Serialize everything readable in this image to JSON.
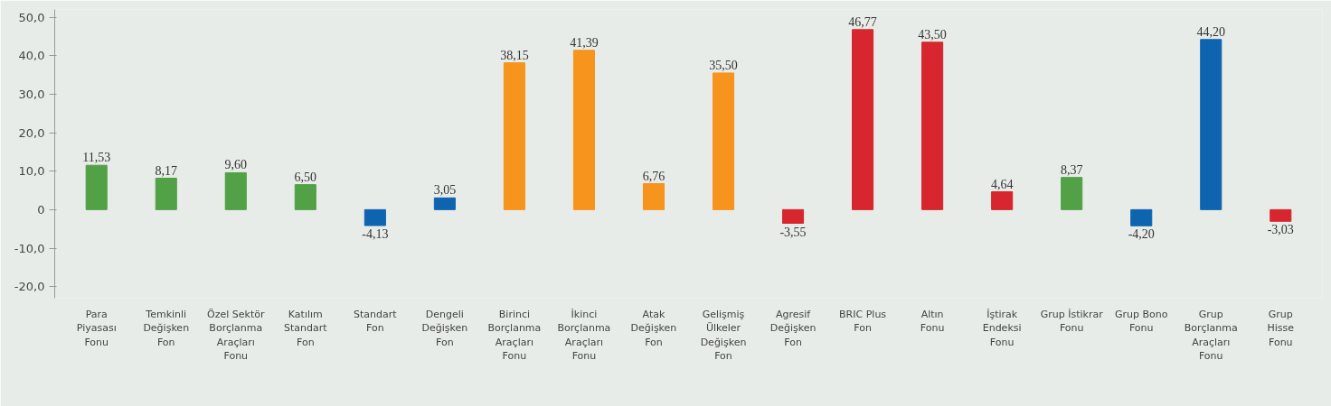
{
  "chart_data": {
    "type": "bar",
    "categories": [
      "Para\nPiyasası\nFonu",
      "Temkinli\nDeğişken\nFon",
      "Özel Sektör\nBorçlanma\nAraçları\nFonu",
      "Katılım\nStandart\nFon",
      "Standart\nFon",
      "Dengeli\nDeğişken\nFon",
      "Birinci\nBorçlanma\nAraçları\nFonu",
      "İkinci\nBorçlanma\nAraçları\nFonu",
      "Atak\nDeğişken\nFon",
      "Gelişmiş\nÜlkeler\nDeğişken\nFon",
      "Agresif\nDeğişken\nFon",
      "BRIC Plus\nFon",
      "Altın\nFonu",
      "İştirak\nEndeksi\nFonu",
      "Grup İstikrar\nFonu",
      "Grup Bono\nFonu",
      "Grup\nBorçlanma\nAraçları\nFonu",
      "Grup\nHisse\nFonu"
    ],
    "values": [
      11.53,
      8.17,
      9.6,
      6.5,
      -4.13,
      3.05,
      38.15,
      41.39,
      6.76,
      35.5,
      -3.55,
      46.77,
      43.5,
      4.64,
      8.37,
      -4.2,
      44.2,
      -3.03
    ],
    "value_labels": [
      "11,53",
      "8,17",
      "9,60",
      "6,50",
      "-4,13",
      "3,05",
      "38,15",
      "41,39",
      "6,76",
      "35,50",
      "-3,55",
      "46,77",
      "43,50",
      "4,64",
      "8,37",
      "-4,20",
      "44,20",
      "-3,03"
    ],
    "colors": [
      "#52a147",
      "#52a147",
      "#52a147",
      "#52a147",
      "#0f64b0",
      "#0f64b0",
      "#f7941d",
      "#f7941d",
      "#f7941d",
      "#f7941d",
      "#d7262e",
      "#d7262e",
      "#d7262e",
      "#d7262e",
      "#52a147",
      "#0f64b0",
      "#0f64b0",
      "#d7262e"
    ],
    "ylim": [
      -23,
      52
    ],
    "yticks": [
      {
        "value": -20,
        "label": "-20,0"
      },
      {
        "value": -10,
        "label": "-10,0"
      },
      0,
      {
        "value": 10,
        "label": "10,0"
      },
      {
        "value": 20,
        "label": "20,0"
      },
      {
        "value": 30,
        "label": "30,0"
      },
      {
        "value": 40,
        "label": "40,0"
      },
      {
        "value": 50,
        "label": "50,0"
      }
    ],
    "grid": false
  }
}
